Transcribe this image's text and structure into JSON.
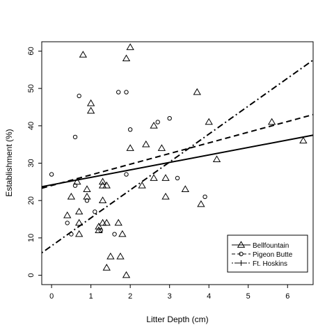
{
  "chart_data": {
    "type": "scatter",
    "xlabel": "Litter Depth (cm)",
    "ylabel": "Establishment (%)",
    "xlim": [
      -0.25,
      6.65
    ],
    "ylim": [
      -2.5,
      62.5
    ],
    "x_ticks": [
      0,
      1,
      2,
      3,
      4,
      5,
      6
    ],
    "y_ticks": [
      0,
      10,
      20,
      30,
      40,
      50,
      60
    ],
    "grid": false,
    "legend_position": "bottom-right",
    "series": [
      {
        "name": "Bellfountain",
        "marker": "triangle",
        "line_style": "solid",
        "fit_line": [
          [
            -0.25,
            23.7
          ],
          [
            6.65,
            37.5
          ]
        ],
        "points": [
          [
            0.4,
            16
          ],
          [
            0.5,
            21
          ],
          [
            0.65,
            25
          ],
          [
            0.7,
            17
          ],
          [
            0.7,
            14
          ],
          [
            0.7,
            11
          ],
          [
            0.8,
            59
          ],
          [
            0.9,
            23
          ],
          [
            0.9,
            21
          ],
          [
            1.0,
            46
          ],
          [
            1.0,
            44
          ],
          [
            1.2,
            12
          ],
          [
            1.2,
            13
          ],
          [
            1.3,
            25
          ],
          [
            1.3,
            24
          ],
          [
            1.3,
            20
          ],
          [
            1.3,
            14
          ],
          [
            1.4,
            24
          ],
          [
            1.4,
            14
          ],
          [
            1.4,
            2
          ],
          [
            1.5,
            5
          ],
          [
            1.7,
            14
          ],
          [
            1.75,
            5
          ],
          [
            1.8,
            11
          ],
          [
            1.9,
            58
          ],
          [
            1.9,
            0
          ],
          [
            2.0,
            61
          ],
          [
            2.0,
            34
          ],
          [
            2.3,
            24
          ],
          [
            2.4,
            35
          ],
          [
            2.6,
            40
          ],
          [
            2.6,
            26
          ],
          [
            2.8,
            34
          ],
          [
            2.9,
            26
          ],
          [
            2.9,
            21
          ],
          [
            3.4,
            23
          ],
          [
            3.7,
            49
          ],
          [
            3.8,
            19
          ],
          [
            4.0,
            41
          ],
          [
            4.2,
            31
          ],
          [
            5.6,
            41
          ],
          [
            6.4,
            36
          ]
        ]
      },
      {
        "name": "Pigeon Butte",
        "marker": "circle",
        "line_style": "dashed",
        "fit_line": [
          [
            -0.25,
            23.3
          ],
          [
            6.65,
            43.0
          ]
        ],
        "points": [
          [
            0.0,
            27
          ],
          [
            0.4,
            14
          ],
          [
            0.5,
            11
          ],
          [
            0.6,
            37
          ],
          [
            0.6,
            24
          ],
          [
            0.7,
            48
          ],
          [
            0.9,
            20
          ],
          [
            1.1,
            17
          ],
          [
            1.25,
            12
          ],
          [
            1.6,
            11
          ],
          [
            1.7,
            49
          ],
          [
            1.9,
            49
          ],
          [
            1.9,
            27
          ],
          [
            2.0,
            39
          ],
          [
            2.7,
            41
          ],
          [
            3.0,
            42
          ],
          [
            3.2,
            26
          ],
          [
            3.9,
            21
          ]
        ]
      },
      {
        "name": "Ft. Hoskins",
        "marker": "plus",
        "line_style": "dotdash",
        "fit_line": [
          [
            -0.25,
            6.0
          ],
          [
            6.65,
            57.6
          ]
        ],
        "points": []
      }
    ]
  }
}
